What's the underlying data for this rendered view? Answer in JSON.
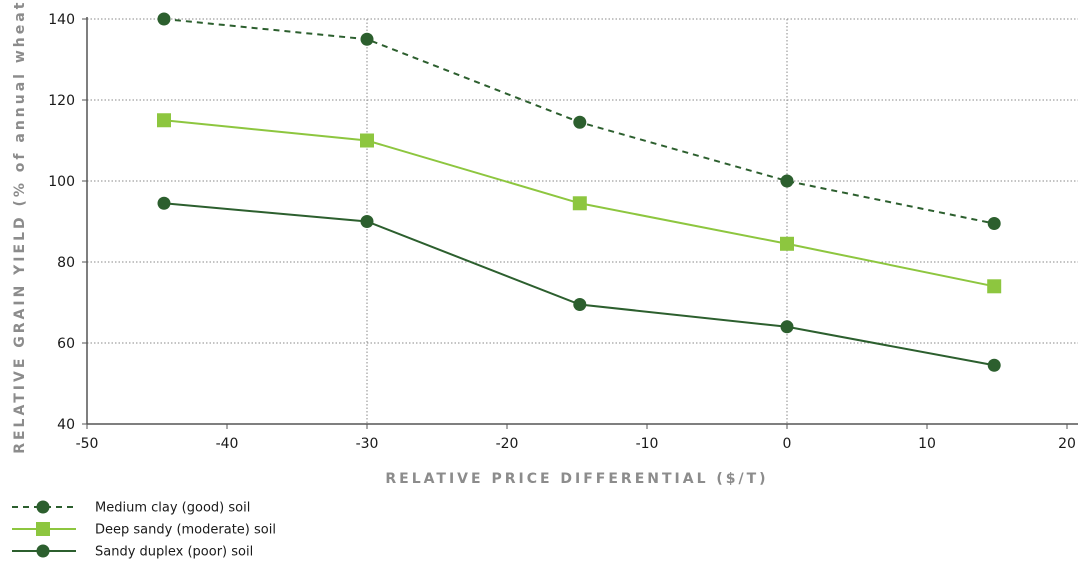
{
  "chart_data": {
    "type": "line",
    "xlabel": "RELATIVE PRICE DIFFERENTIAL ($/T)",
    "ylabel": "RELATIVE GRAIN YIELD (% of annual wheat)",
    "xlim": [
      -50,
      20
    ],
    "ylim": [
      40,
      140
    ],
    "xticks": [
      -50,
      -40,
      -30,
      -20,
      -10,
      0,
      10,
      20
    ],
    "yticks": [
      40,
      60,
      80,
      100,
      120,
      140
    ],
    "x": [
      -44.5,
      -30,
      -14.8,
      0,
      14.8
    ],
    "grid": "dotted horizontal lines at y ticks; dotted vertical lines at x = -30 and x = 0",
    "legend_position": "bottom-left, below the chart",
    "series": [
      {
        "name": "Medium clay (good) soil",
        "color": "#2c5f2e",
        "line_style": "dashed",
        "marker": "circle",
        "values": [
          140,
          135,
          114.5,
          100,
          89.5
        ]
      },
      {
        "name": "Deep sandy (moderate) soil",
        "color": "#8dc63f",
        "line_style": "solid",
        "marker": "square",
        "values": [
          115,
          110,
          94.5,
          84.5,
          74
        ]
      },
      {
        "name": "Sandy duplex (poor) soil",
        "color": "#2c5f2e",
        "line_style": "solid",
        "marker": "circle",
        "values": [
          94.5,
          90,
          69.5,
          64,
          54.5
        ]
      }
    ]
  }
}
